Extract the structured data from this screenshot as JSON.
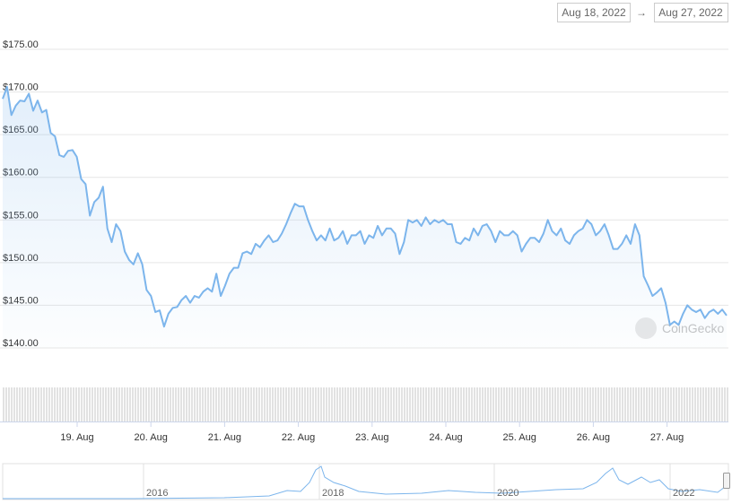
{
  "range": {
    "from": "Aug 18, 2022",
    "separator": "→",
    "to": "Aug 27, 2022"
  },
  "watermark": "CoinGecko",
  "navigator": {
    "labels": [
      "2016",
      "2018",
      "2020",
      "2022"
    ]
  },
  "chart_data": {
    "type": "line",
    "color": "#7cb5ec",
    "grid": true,
    "ylim": [
      140,
      175
    ],
    "yticks": [
      {
        "value": 175,
        "label": "$175.00"
      },
      {
        "value": 170,
        "label": "$170.00"
      },
      {
        "value": 165,
        "label": "$165.00"
      },
      {
        "value": 160,
        "label": "$160.00"
      },
      {
        "value": 155,
        "label": "$155.00"
      },
      {
        "value": 150,
        "label": "$150.00"
      },
      {
        "value": 145,
        "label": "$145.00"
      },
      {
        "value": 140,
        "label": "$140.00"
      }
    ],
    "x_axis_labels": [
      "19. Aug",
      "20. Aug",
      "21. Aug",
      "22. Aug",
      "23. Aug",
      "24. Aug",
      "25. Aug",
      "26. Aug",
      "27. Aug"
    ],
    "values": [
      169.2,
      170.6,
      167.3,
      168.4,
      169.0,
      168.9,
      169.8,
      167.8,
      169.0,
      167.6,
      167.9,
      165.2,
      164.8,
      162.6,
      162.4,
      163.1,
      163.2,
      162.4,
      159.8,
      159.2,
      155.5,
      157.1,
      157.6,
      158.9,
      154.0,
      152.4,
      154.5,
      153.7,
      151.3,
      150.3,
      149.8,
      151.1,
      149.8,
      146.8,
      146.1,
      144.2,
      144.4,
      142.5,
      144.0,
      144.7,
      144.8,
      145.6,
      146.1,
      145.3,
      146.1,
      145.9,
      146.6,
      147.0,
      146.6,
      148.7,
      146.1,
      147.3,
      148.7,
      149.4,
      149.4,
      151.1,
      151.3,
      151.0,
      152.2,
      151.8,
      152.6,
      153.2,
      152.4,
      152.6,
      153.4,
      154.5,
      155.8,
      156.9,
      156.6,
      156.6,
      155.0,
      153.7,
      152.6,
      153.2,
      152.6,
      154.0,
      152.6,
      152.9,
      153.7,
      152.2,
      153.2,
      153.2,
      153.7,
      152.2,
      153.2,
      152.9,
      154.3,
      153.2,
      154.0,
      154.0,
      153.4,
      151.0,
      152.4,
      155.0,
      154.7,
      155.0,
      154.3,
      155.3,
      154.5,
      155.0,
      154.7,
      155.0,
      154.5,
      154.5,
      152.4,
      152.2,
      152.9,
      152.6,
      154.0,
      153.2,
      154.3,
      154.5,
      153.7,
      152.4,
      153.7,
      153.2,
      153.2,
      153.7,
      153.2,
      151.3,
      152.2,
      152.9,
      152.9,
      152.4,
      153.4,
      155.0,
      153.7,
      153.2,
      154.0,
      152.6,
      152.2,
      153.2,
      153.7,
      154.0,
      155.0,
      154.5,
      153.2,
      153.7,
      154.5,
      153.2,
      151.6,
      151.6,
      152.2,
      153.2,
      152.2,
      154.5,
      153.2,
      148.4,
      147.3,
      146.1,
      146.5,
      147.0,
      145.3,
      142.7,
      143.1,
      142.7,
      144.0,
      145.0,
      144.5,
      144.2,
      144.5,
      143.5,
      144.2,
      144.5,
      144.0,
      144.5,
      143.8
    ]
  }
}
